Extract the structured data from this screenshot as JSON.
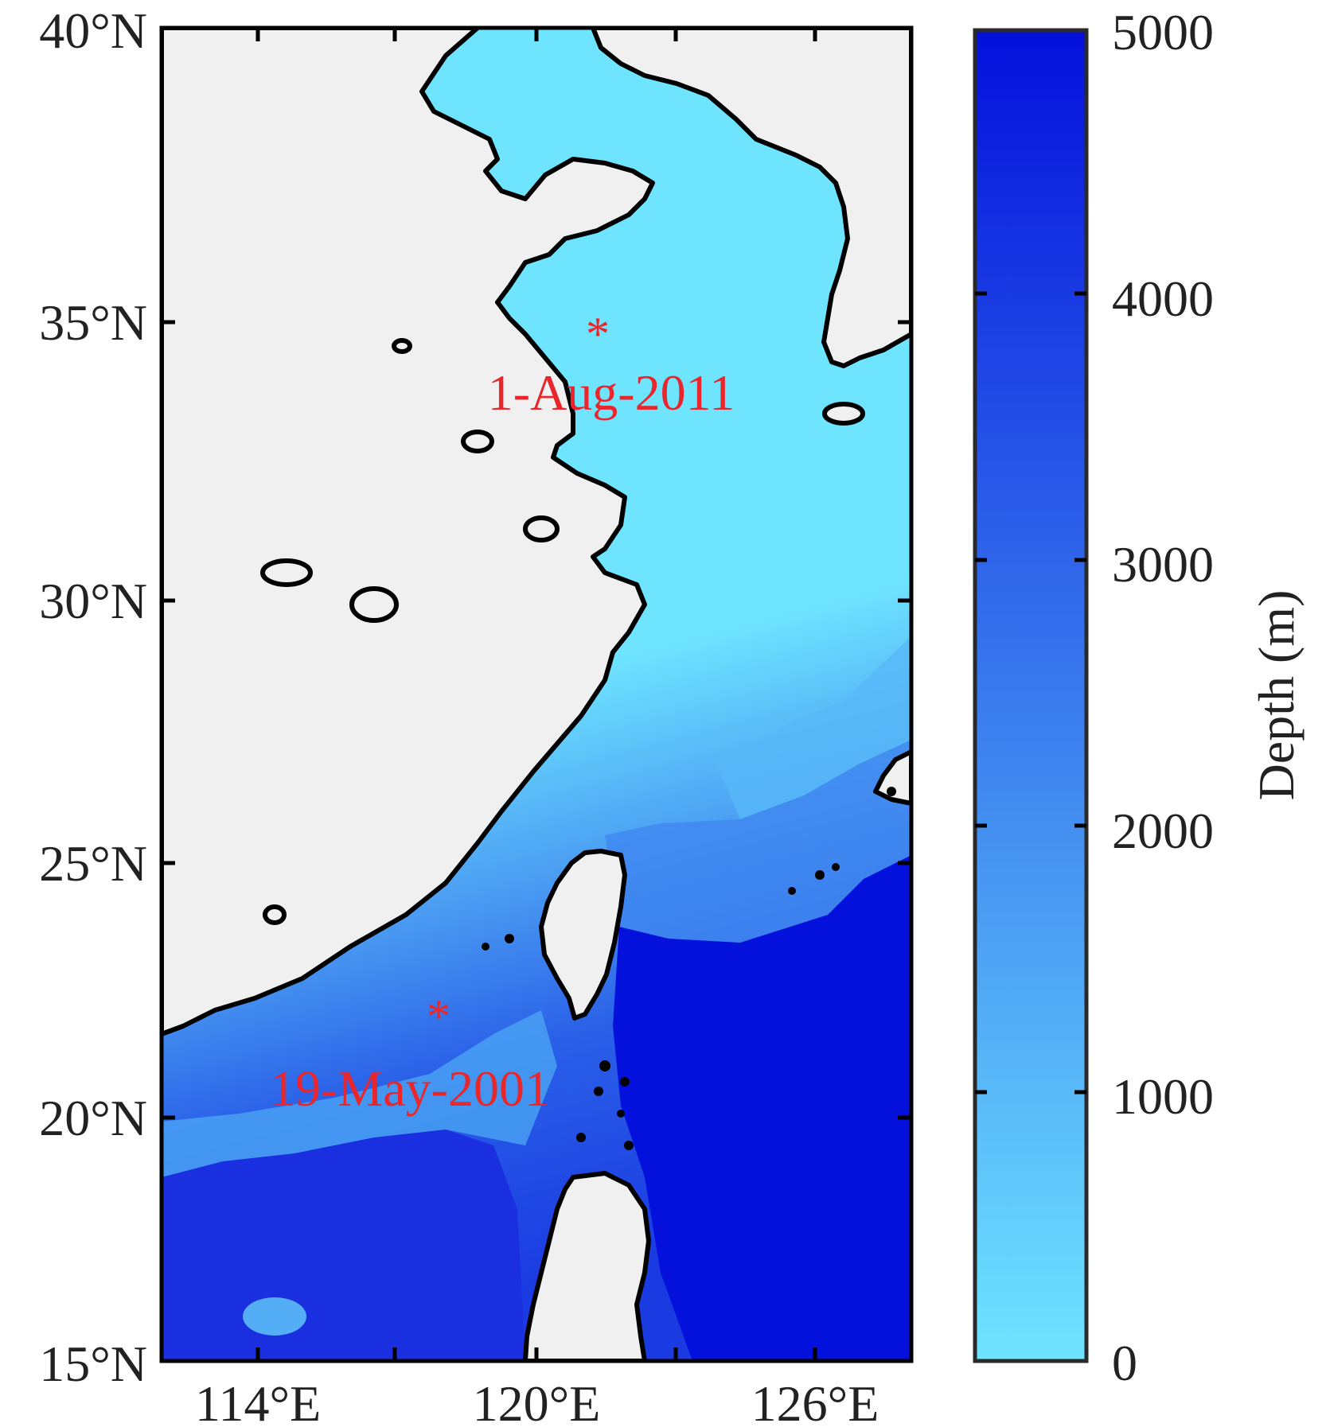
{
  "map": {
    "lat_labels": [
      "40°N",
      "35°N",
      "30°N",
      "25°N",
      "20°N",
      "15°N"
    ],
    "lon_labels": [
      "114°E",
      "120°E",
      "126°E"
    ],
    "markers": [
      {
        "symbol": "*",
        "label": "1-Aug-2011",
        "lat": 34.8,
        "lon": 121.5
      },
      {
        "symbol": "*",
        "label": "19-May-2001",
        "lat": 21.9,
        "lon": 118.0
      }
    ],
    "colors": {
      "land": "#f0f0f0",
      "coastline": "#000000",
      "shallow": "#6ee4ff",
      "deep": "#0410dc",
      "marker": "#e8262b"
    }
  },
  "colorbar": {
    "title": "Depth (m)",
    "ticks": [
      "5000",
      "4000",
      "3000",
      "2000",
      "1000",
      "0"
    ],
    "min": 0,
    "max": 5000,
    "colors": [
      "#6ee4ff",
      "#0410dc"
    ]
  }
}
